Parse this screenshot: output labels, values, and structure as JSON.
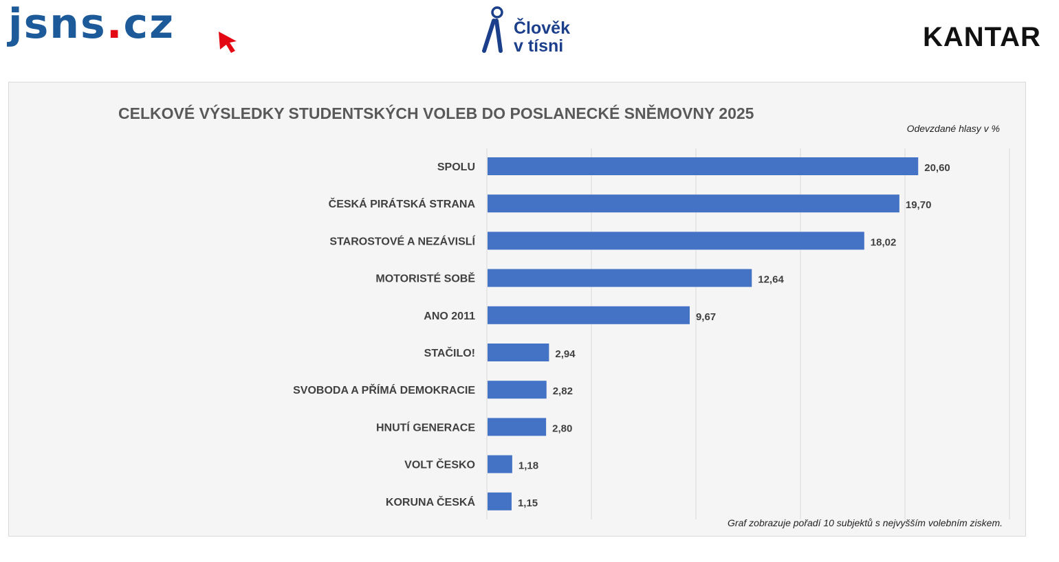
{
  "logos": {
    "jsns_main": "jsns",
    "jsns_dot": ".",
    "jsns_tld": "cz",
    "cvt_line1": "Člověk",
    "cvt_line2": "v tísni",
    "kantar": "KANTAR"
  },
  "colors": {
    "bar": "#4472c4",
    "grid": "#d9d9d9"
  },
  "chart_data": {
    "type": "bar",
    "orientation": "horizontal",
    "title": "CELKOVÉ VÝSLEDKY STUDENTSKÝCH VOLEB DO POSLANECKÉ SNĚMOVNY 2025",
    "unit_label": "Odevzdané hlasy v %",
    "footnote": "Graf zobrazuje pořadí 10 subjektů s nejvyšším volebním ziskem.",
    "categories": [
      "SPOLU",
      "ČESKÁ PIRÁTSKÁ STRANA",
      "STAROSTOVÉ A NEZÁVISLÍ",
      "MOTORISTÉ SOBĚ",
      "ANO 2011",
      "STAČILO!",
      "SVOBODA A PŘÍMÁ DEMOKRACIE",
      "HNUTÍ GENERACE",
      "VOLT ČESKO",
      "KORUNA ČESKÁ"
    ],
    "values": [
      20.6,
      19.7,
      18.02,
      12.64,
      9.67,
      2.94,
      2.82,
      2.8,
      1.18,
      1.15
    ],
    "value_labels": [
      "20,60",
      "19,70",
      "18,02",
      "12,64",
      "9,67",
      "2,94",
      "2,82",
      "2,80",
      "1,18",
      "1,15"
    ],
    "xlim": [
      0,
      25
    ],
    "grid_step": 5,
    "grid": true
  }
}
